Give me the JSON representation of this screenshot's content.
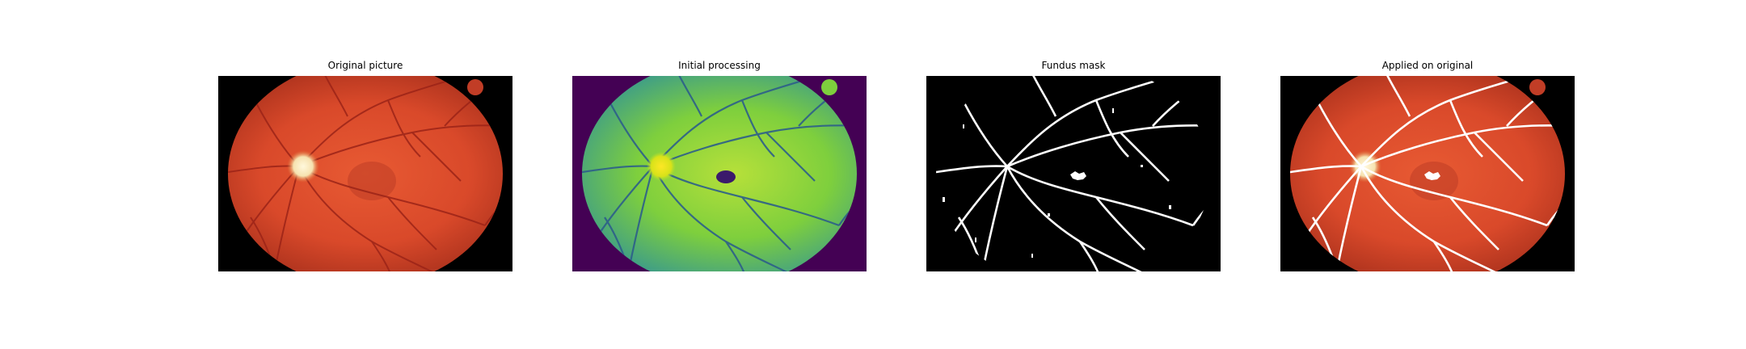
{
  "figure": {
    "panels": [
      {
        "title": "Original picture"
      },
      {
        "title": "Initial processing"
      },
      {
        "title": "Fundus mask"
      },
      {
        "title": "Applied on original"
      }
    ]
  },
  "colors": {
    "background": "#ffffff",
    "frame": "#000000",
    "fundus_red": "#d9492a",
    "optic_disc": "#f6e2b0",
    "processed_bg": "#440154",
    "processed_green": "#7ecf3d",
    "processed_vessel": "#2d5f8a",
    "mask_vessel": "#ffffff"
  }
}
